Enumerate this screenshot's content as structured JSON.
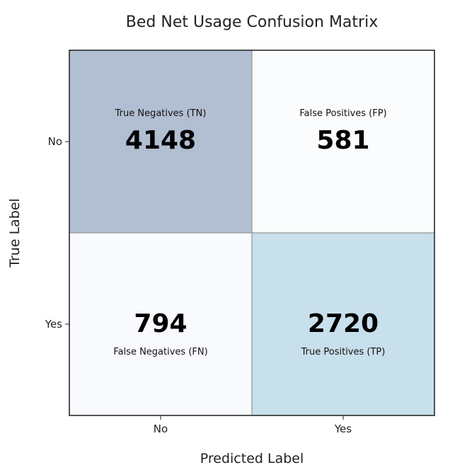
{
  "chart_data": {
    "type": "heatmap",
    "title": "Bed Net Usage Confusion Matrix",
    "xlabel": "Predicted Label",
    "ylabel": "True Label",
    "x_categories": [
      "No",
      "Yes"
    ],
    "y_categories": [
      "No",
      "Yes"
    ],
    "values": [
      [
        4148,
        581
      ],
      [
        794,
        2720
      ]
    ],
    "cell_labels": [
      [
        "True Negatives (TN)",
        "False Positives (FP)"
      ],
      [
        "False Negatives (FN)",
        "True Positives (TP)"
      ]
    ],
    "cell_colors": [
      [
        "#b2bed2",
        "#fbfcfe"
      ],
      [
        "#f8fafd",
        "#c8dfec"
      ]
    ],
    "grid_color": "#9a9a9a",
    "border_color": "#222222"
  }
}
